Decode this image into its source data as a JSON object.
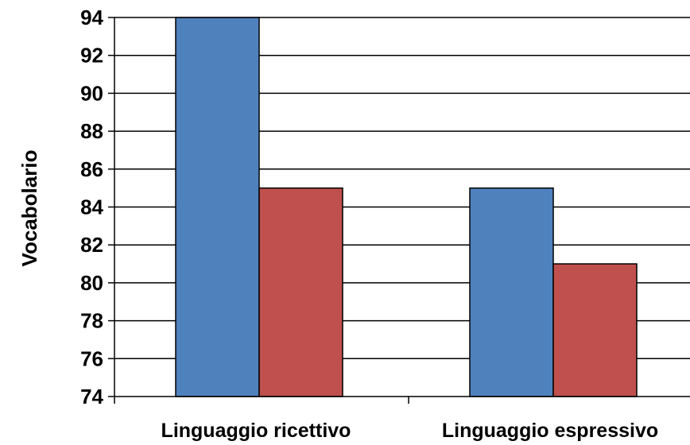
{
  "chart_data": {
    "type": "bar",
    "title": "",
    "xlabel": "",
    "ylabel": "Vocabolario",
    "ylim": [
      74,
      94
    ],
    "yticks": [
      74,
      76,
      78,
      80,
      82,
      84,
      86,
      88,
      90,
      92,
      94
    ],
    "categories": [
      "Linguaggio ricettivo",
      "Linguaggio espressivo"
    ],
    "series": [
      {
        "values": [
          94,
          85
        ],
        "color": "#4f81bd"
      },
      {
        "values": [
          85,
          81
        ],
        "color": "#c0504d"
      }
    ],
    "grid": true,
    "legend": "none"
  }
}
